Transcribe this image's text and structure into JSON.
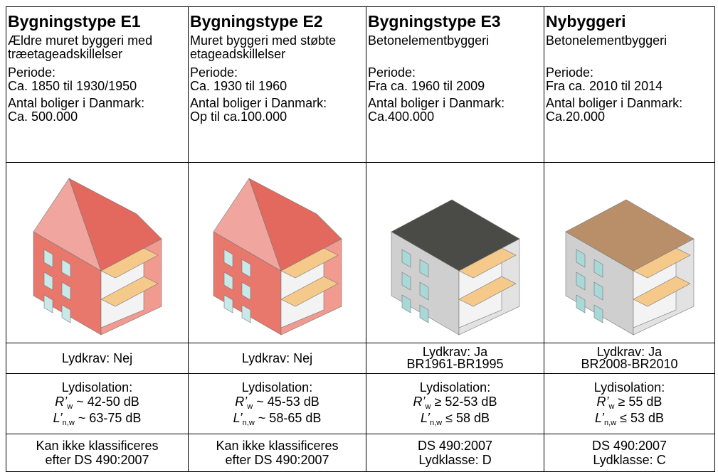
{
  "columns": [
    {
      "title": "Bygningstype E1",
      "description": "Ældre muret byggeri med træetageadskillelser",
      "period_label": "Periode:",
      "period": "Ca. 1850 til 1930/1950",
      "count_label": "Antal boliger i Danmark:",
      "count": "Ca. 500.000",
      "requirement": [
        "Lydkrav: Nej"
      ],
      "insulation": {
        "label": "Lydisolation:",
        "r_symbol": "R’",
        "r_sub": "w",
        "r_value": "~ 42-50 dB",
        "l_symbol": "L’",
        "l_sub": "n,w",
        "l_value": "~ 63-75 dB"
      },
      "classification": [
        "Kan ikke klassificeres",
        "efter DS 490:2007"
      ]
    },
    {
      "title": "Bygningstype E2",
      "description": "Muret byggeri med støbte etageadskillelser",
      "period_label": "Periode:",
      "period": "Ca. 1930 til 1960",
      "count_label": "Antal boliger i Danmark:",
      "count": "Op til ca.100.000",
      "requirement": [
        "Lydkrav: Nej"
      ],
      "insulation": {
        "label": "Lydisolation:",
        "r_symbol": "R’",
        "r_sub": "w",
        "r_value": "~ 45-53 dB",
        "l_symbol": "L’",
        "l_sub": "n,w",
        "l_value": "~ 58-65 dB"
      },
      "classification": [
        "Kan ikke klassificeres",
        "efter DS 490:2007"
      ]
    },
    {
      "title": "Bygningstype E3",
      "description": "Betonelementbyggeri",
      "period_label": "Periode:",
      "period": "Fra ca. 1960 til 2009",
      "count_label": "Antal boliger i Danmark:",
      "count": "Ca.400.000",
      "requirement": [
        "Lydkrav: Ja",
        "BR1961-BR1995"
      ],
      "insulation": {
        "label": "Lydisolation:",
        "r_symbol": "R’",
        "r_sub": "w",
        "r_value": "≥ 52-53 dB",
        "l_symbol": "L’",
        "l_sub": "n,w",
        "l_value": "≤ 58 dB"
      },
      "classification": [
        "DS 490:2007",
        "Lydklasse: D"
      ]
    },
    {
      "title": "Nybyggeri",
      "description": "Betonelementbyggeri",
      "period_label": "Periode:",
      "period": "Fra ca. 2010 til 2014",
      "count_label": "Antal boliger i Danmark:",
      "count": "Ca.20.000",
      "requirement": [
        "Lydkrav: Ja",
        "BR2008-BR2010"
      ],
      "insulation": {
        "label": "Lydisolation:",
        "r_symbol": "R’",
        "r_sub": "w",
        "r_value": "≥ 55 dB",
        "l_symbol": "L’",
        "l_sub": "n,w",
        "l_value": "≤ 53 dB"
      },
      "classification": [
        "DS 490:2007",
        "Lydklasse: C"
      ]
    }
  ]
}
